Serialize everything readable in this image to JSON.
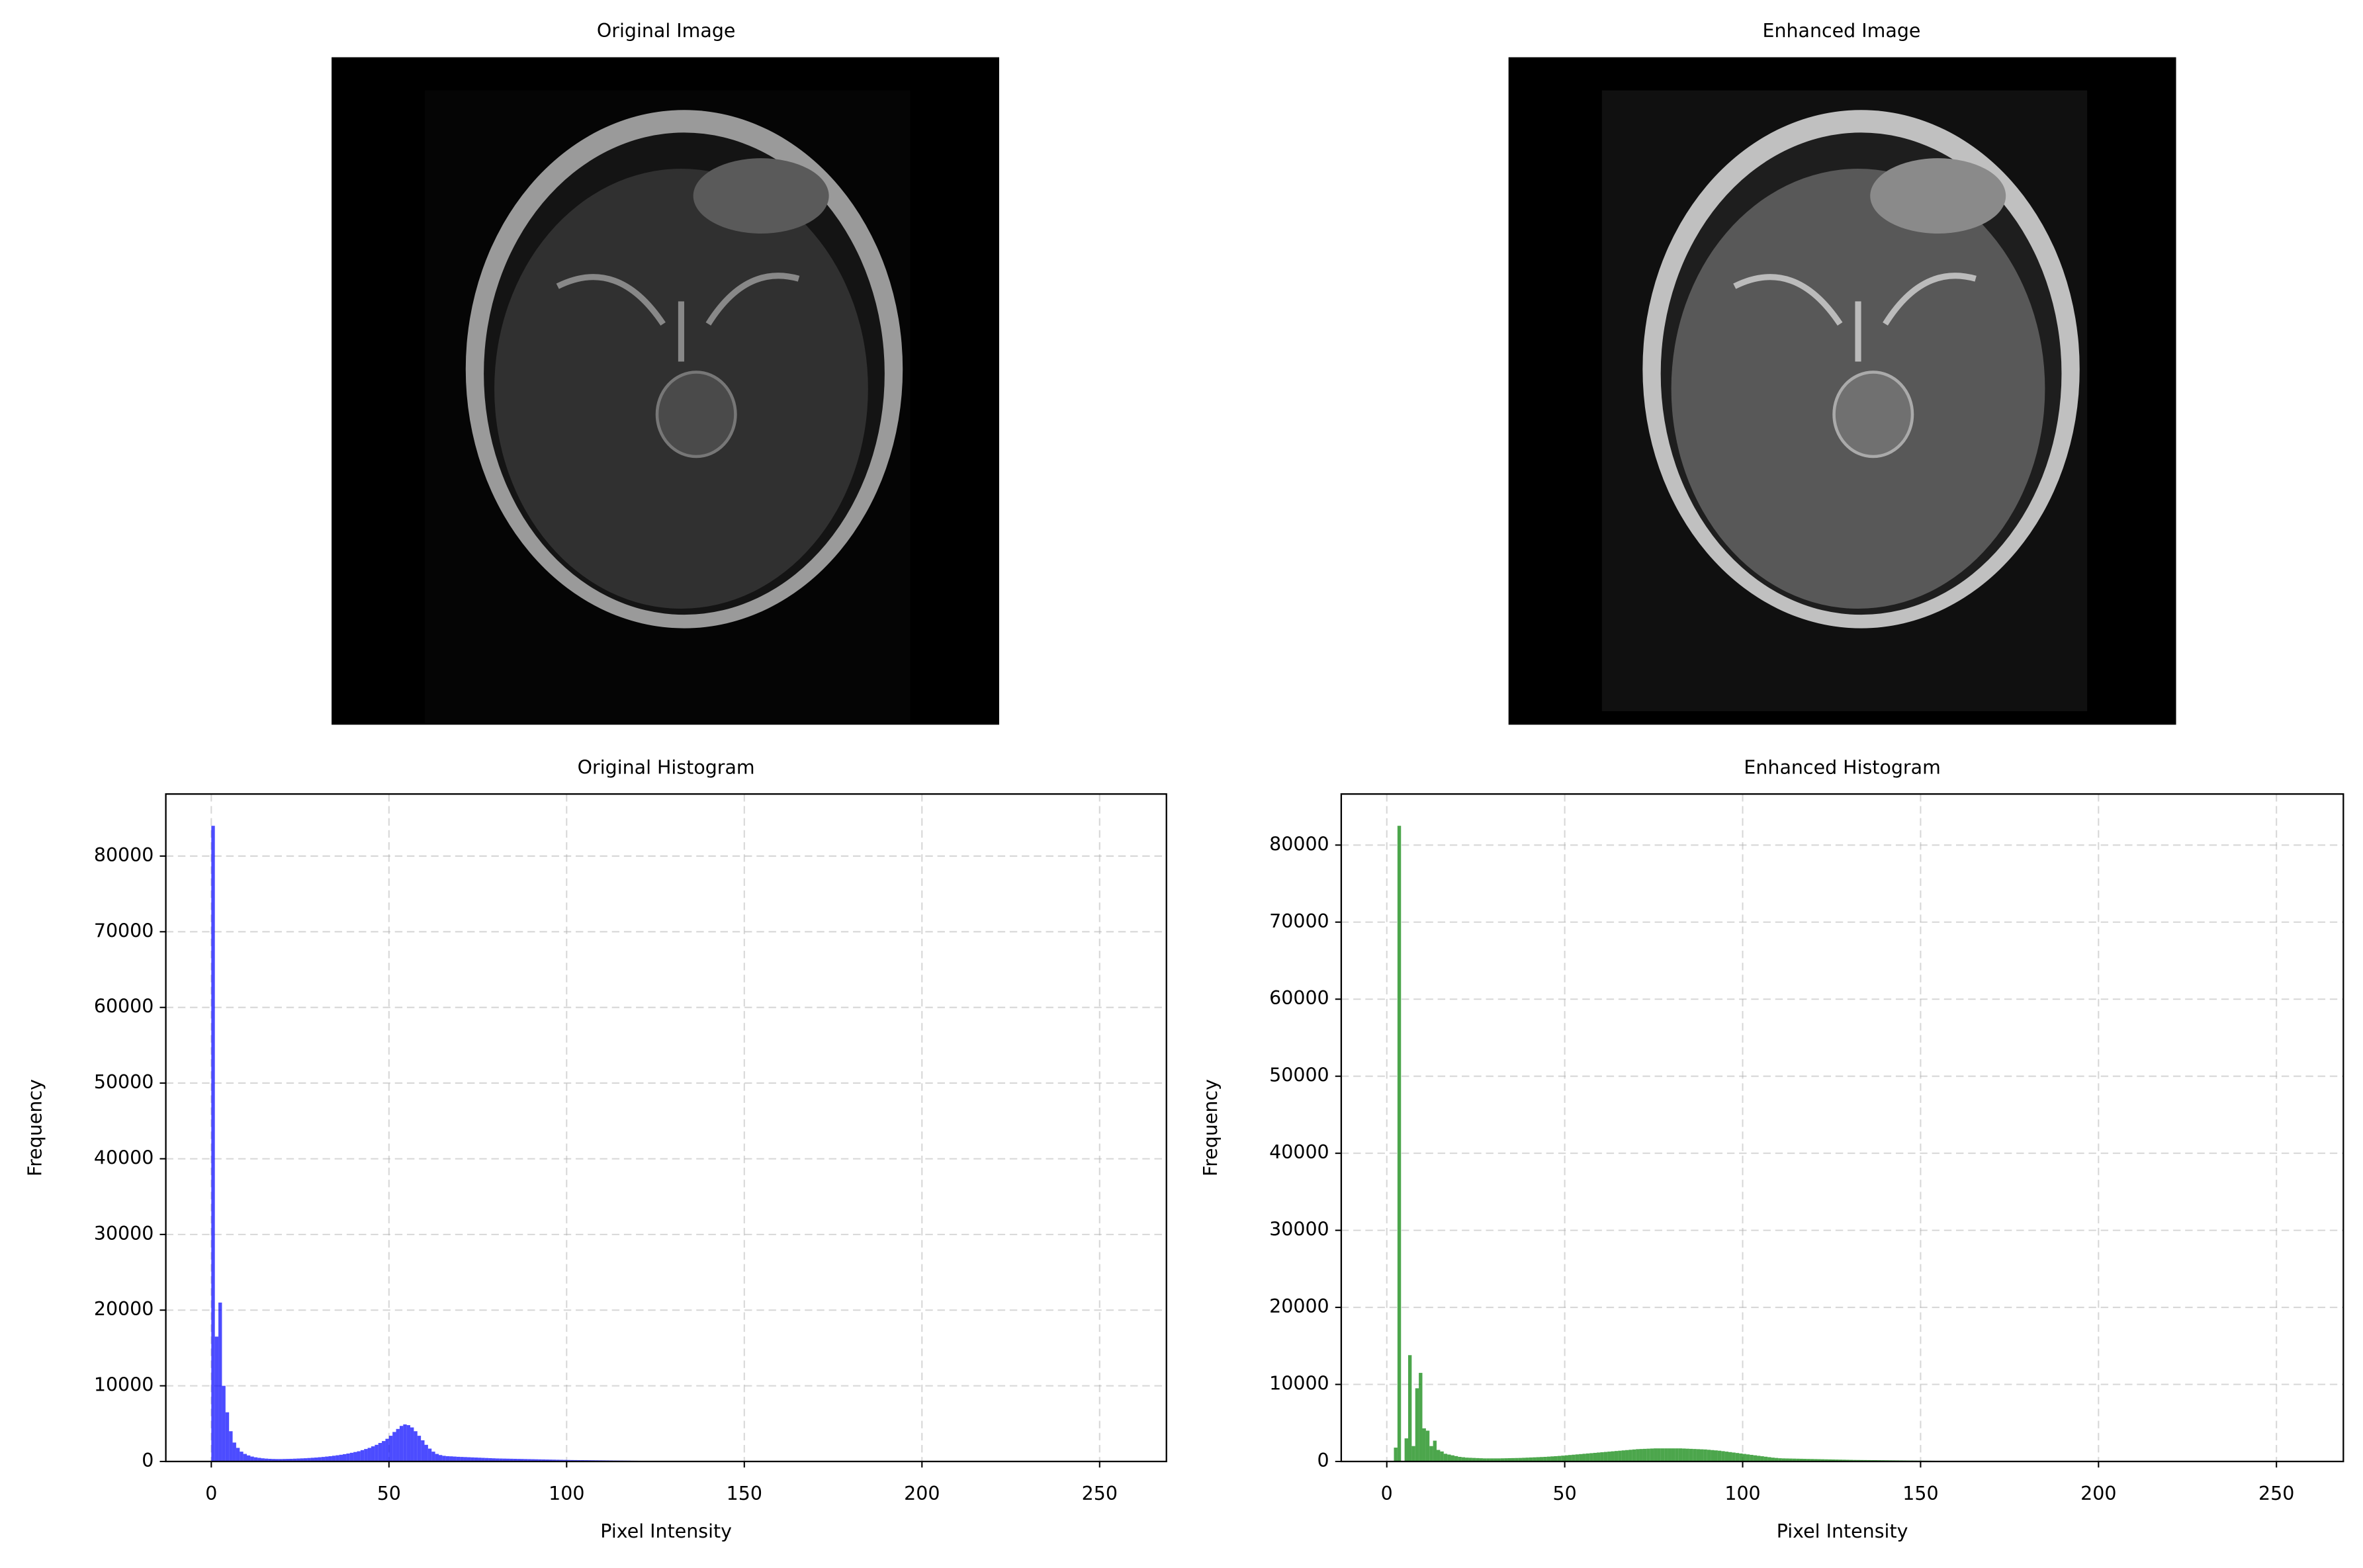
{
  "chart_data": [
    {
      "type": "image",
      "title": "Original Image"
    },
    {
      "type": "image",
      "title": "Enhanced Image"
    },
    {
      "type": "histogram",
      "title": "Original Histogram",
      "xlabel": "Pixel Intensity",
      "ylabel": "Frequency",
      "color": "blue",
      "alpha": 0.7,
      "grid": true,
      "xlim": [
        -12.8,
        268.8
      ],
      "xticks": [
        0,
        50,
        100,
        150,
        200,
        250
      ],
      "ylim": [
        0,
        88200
      ],
      "yticks": [
        0,
        10000,
        20000,
        30000,
        40000,
        50000,
        60000,
        70000,
        80000
      ],
      "bins": [
        0,
        1,
        2,
        3,
        4,
        5,
        6,
        7,
        8,
        9,
        10,
        11,
        12,
        13,
        14,
        15,
        16,
        17,
        18,
        19,
        20,
        21,
        22,
        23,
        24,
        25,
        26,
        27,
        28,
        29,
        30,
        31,
        32,
        33,
        34,
        35,
        36,
        37,
        38,
        39,
        40,
        41,
        42,
        43,
        44,
        45,
        46,
        47,
        48,
        49,
        50,
        51,
        52,
        53,
        54,
        55,
        56,
        57,
        58,
        59,
        60,
        61,
        62,
        63,
        64,
        65,
        66,
        67,
        68,
        69,
        70,
        71,
        72,
        73,
        74,
        75,
        76,
        77,
        78,
        79,
        80,
        81,
        82,
        83,
        84,
        85,
        86,
        87,
        88,
        89,
        90,
        91,
        92,
        93,
        94,
        95,
        96,
        97,
        98,
        99,
        100,
        101,
        102,
        103,
        104,
        105,
        106,
        107,
        108,
        109,
        110,
        111,
        112,
        113,
        114,
        115,
        116,
        117,
        118,
        119,
        120,
        121,
        122,
        123,
        124,
        125,
        126,
        127,
        128,
        129,
        130
      ],
      "values": [
        84000,
        16500,
        21000,
        10000,
        6500,
        4000,
        2500,
        1800,
        1300,
        1000,
        800,
        650,
        550,
        480,
        420,
        380,
        350,
        330,
        320,
        320,
        330,
        340,
        350,
        370,
        390,
        410,
        430,
        460,
        490,
        520,
        560,
        600,
        650,
        700,
        760,
        820,
        890,
        970,
        1050,
        1150,
        1250,
        1350,
        1500,
        1650,
        1800,
        2000,
        2200,
        2450,
        2700,
        3000,
        3400,
        3900,
        4300,
        4700,
        4900,
        4800,
        4500,
        4000,
        3400,
        2800,
        2200,
        1700,
        1300,
        1000,
        850,
        750,
        700,
        680,
        650,
        620,
        600,
        580,
        560,
        540,
        520,
        500,
        480,
        460,
        440,
        420,
        400,
        390,
        380,
        370,
        360,
        350,
        340,
        330,
        320,
        310,
        300,
        290,
        280,
        270,
        260,
        250,
        240,
        230,
        220,
        210,
        200,
        190,
        185,
        180,
        175,
        170,
        165,
        160,
        155,
        150,
        145,
        140,
        135,
        130,
        125,
        120,
        115,
        110,
        100,
        95,
        90,
        85,
        80,
        75,
        70,
        65,
        60,
        55,
        50,
        45
      ]
    },
    {
      "type": "histogram",
      "title": "Enhanced Histogram",
      "xlabel": "Pixel Intensity",
      "ylabel": "Frequency",
      "color": "green",
      "alpha": 0.7,
      "grid": true,
      "xlim": [
        -12.8,
        268.8
      ],
      "xticks": [
        0,
        50,
        100,
        150,
        200,
        250
      ],
      "ylim": [
        0,
        86625
      ],
      "yticks": [
        0,
        10000,
        20000,
        30000,
        40000,
        50000,
        60000,
        70000,
        80000
      ],
      "bins": [
        0,
        1,
        2,
        3,
        4,
        5,
        6,
        7,
        8,
        9,
        10,
        11,
        12,
        13,
        14,
        15,
        16,
        17,
        18,
        19,
        20,
        21,
        22,
        23,
        24,
        25,
        26,
        27,
        28,
        29,
        30,
        31,
        32,
        33,
        34,
        35,
        36,
        37,
        38,
        39,
        40,
        41,
        42,
        43,
        44,
        45,
        46,
        47,
        48,
        49,
        50,
        51,
        52,
        53,
        54,
        55,
        56,
        57,
        58,
        59,
        60,
        61,
        62,
        63,
        64,
        65,
        66,
        67,
        68,
        69,
        70,
        71,
        72,
        73,
        74,
        75,
        76,
        77,
        78,
        79,
        80,
        81,
        82,
        83,
        84,
        85,
        86,
        87,
        88,
        89,
        90,
        91,
        92,
        93,
        94,
        95,
        96,
        97,
        98,
        99,
        100,
        101,
        102,
        103,
        104,
        105,
        106,
        107,
        108,
        109,
        110,
        111,
        112,
        113,
        114,
        115,
        116,
        117,
        118,
        119,
        120,
        121,
        122,
        123,
        124,
        125,
        126,
        127,
        128,
        129,
        130,
        131,
        132,
        133,
        134,
        135,
        136,
        137,
        138,
        139,
        140,
        141,
        142,
        143,
        144,
        145,
        146,
        147,
        148,
        149,
        150,
        151,
        152,
        153,
        154,
        155,
        156,
        157,
        158,
        159,
        160,
        161,
        162,
        163,
        164,
        165,
        166,
        167,
        168,
        169,
        170,
        171,
        172,
        173,
        174,
        175,
        176,
        177,
        178,
        179,
        180,
        181,
        182,
        183,
        184,
        185,
        186,
        187,
        188,
        189,
        190
      ],
      "values": [
        0,
        0,
        1800,
        82500,
        0,
        3000,
        13800,
        2000,
        9500,
        11500,
        4300,
        4000,
        2000,
        2700,
        1500,
        1300,
        1000,
        900,
        800,
        700,
        600,
        550,
        500,
        480,
        460,
        440,
        420,
        400,
        400,
        400,
        400,
        400,
        410,
        420,
        430,
        440,
        450,
        460,
        480,
        500,
        520,
        540,
        560,
        580,
        600,
        630,
        660,
        690,
        720,
        760,
        800,
        840,
        880,
        920,
        960,
        1000,
        1040,
        1080,
        1120,
        1160,
        1200,
        1240,
        1280,
        1320,
        1360,
        1400,
        1440,
        1480,
        1520,
        1560,
        1600,
        1620,
        1640,
        1660,
        1680,
        1700,
        1700,
        1700,
        1700,
        1700,
        1700,
        1700,
        1700,
        1680,
        1660,
        1640,
        1620,
        1600,
        1580,
        1560,
        1520,
        1480,
        1440,
        1400,
        1340,
        1280,
        1220,
        1160,
        1100,
        1040,
        980,
        920,
        860,
        800,
        740,
        680,
        620,
        560,
        500,
        460,
        420,
        400,
        390,
        380,
        370,
        360,
        350,
        340,
        330,
        320,
        310,
        300,
        290,
        280,
        270,
        260,
        250,
        240,
        230,
        220,
        210,
        200,
        195,
        190,
        185,
        180,
        175,
        170,
        165,
        160,
        155,
        150,
        145,
        140,
        135,
        130,
        125,
        120,
        115,
        110,
        105,
        100,
        95,
        90,
        85,
        80,
        75,
        70,
        65,
        60,
        55,
        50,
        48,
        46,
        44,
        42,
        40,
        38,
        36,
        34,
        32,
        30,
        28,
        26,
        24,
        22,
        20,
        18,
        16,
        14,
        12,
        10,
        9,
        8,
        7,
        6,
        5,
        4,
        3,
        2
      ]
    }
  ]
}
